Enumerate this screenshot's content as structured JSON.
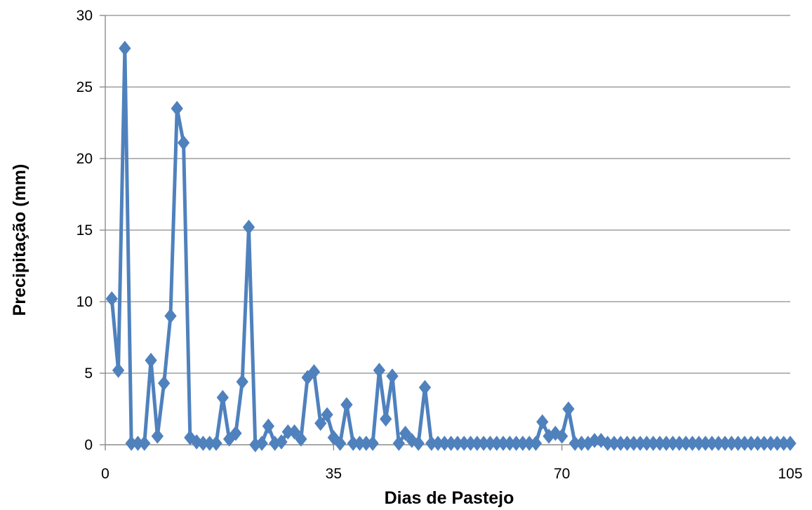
{
  "chart_data": {
    "type": "line",
    "xlabel": "Dias de Pastejo",
    "ylabel": "Precipitação (mm)",
    "xlim": [
      0,
      105
    ],
    "ylim": [
      0,
      30
    ],
    "x_ticks": [
      0,
      35,
      70,
      105
    ],
    "y_ticks": [
      0,
      5,
      10,
      15,
      20,
      25,
      30
    ],
    "grid": "horizontal",
    "legend": "none",
    "series": [
      {
        "color": "#4f81bd",
        "marker": "diamond",
        "points": [
          [
            1,
            10.2
          ],
          [
            2,
            5.2
          ],
          [
            3,
            27.7
          ],
          [
            4,
            0.1
          ],
          [
            5,
            0.1
          ],
          [
            6,
            0.1
          ],
          [
            7,
            5.9
          ],
          [
            8,
            0.6
          ],
          [
            9,
            4.3
          ],
          [
            10,
            9.0
          ],
          [
            11,
            23.5
          ],
          [
            12,
            21.1
          ],
          [
            13,
            0.5
          ],
          [
            14,
            0.2
          ],
          [
            15,
            0.1
          ],
          [
            16,
            0.1
          ],
          [
            17,
            0.1
          ],
          [
            18,
            3.3
          ],
          [
            19,
            0.4
          ],
          [
            20,
            0.8
          ],
          [
            21,
            4.4
          ],
          [
            22,
            15.2
          ],
          [
            23,
            0.0
          ],
          [
            24,
            0.1
          ],
          [
            25,
            1.3
          ],
          [
            26,
            0.1
          ],
          [
            27,
            0.2
          ],
          [
            28,
            0.9
          ],
          [
            29,
            0.9
          ],
          [
            30,
            0.4
          ],
          [
            31,
            4.7
          ],
          [
            32,
            5.1
          ],
          [
            33,
            1.5
          ],
          [
            34,
            2.1
          ],
          [
            35,
            0.5
          ],
          [
            36,
            0.1
          ],
          [
            37,
            2.8
          ],
          [
            38,
            0.1
          ],
          [
            39,
            0.1
          ],
          [
            40,
            0.1
          ],
          [
            41,
            0.1
          ],
          [
            42,
            5.2
          ],
          [
            43,
            1.8
          ],
          [
            44,
            4.8
          ],
          [
            45,
            0.1
          ],
          [
            46,
            0.8
          ],
          [
            47,
            0.3
          ],
          [
            48,
            0.1
          ],
          [
            49,
            4.0
          ],
          [
            50,
            0.1
          ],
          [
            51,
            0.1
          ],
          [
            52,
            0.1
          ],
          [
            53,
            0.1
          ],
          [
            54,
            0.1
          ],
          [
            55,
            0.1
          ],
          [
            56,
            0.1
          ],
          [
            57,
            0.1
          ],
          [
            58,
            0.1
          ],
          [
            59,
            0.1
          ],
          [
            60,
            0.1
          ],
          [
            61,
            0.1
          ],
          [
            62,
            0.1
          ],
          [
            63,
            0.1
          ],
          [
            64,
            0.1
          ],
          [
            65,
            0.1
          ],
          [
            66,
            0.1
          ],
          [
            67,
            1.6
          ],
          [
            68,
            0.6
          ],
          [
            69,
            0.8
          ],
          [
            70,
            0.6
          ],
          [
            71,
            2.5
          ],
          [
            72,
            0.1
          ],
          [
            73,
            0.1
          ],
          [
            74,
            0.1
          ],
          [
            75,
            0.3
          ],
          [
            76,
            0.3
          ],
          [
            77,
            0.1
          ],
          [
            78,
            0.1
          ],
          [
            79,
            0.1
          ],
          [
            80,
            0.1
          ],
          [
            81,
            0.1
          ],
          [
            82,
            0.1
          ],
          [
            83,
            0.1
          ],
          [
            84,
            0.1
          ],
          [
            85,
            0.1
          ],
          [
            86,
            0.1
          ],
          [
            87,
            0.1
          ],
          [
            88,
            0.1
          ],
          [
            89,
            0.1
          ],
          [
            90,
            0.1
          ],
          [
            91,
            0.1
          ],
          [
            92,
            0.1
          ],
          [
            93,
            0.1
          ],
          [
            94,
            0.1
          ],
          [
            95,
            0.1
          ],
          [
            96,
            0.1
          ],
          [
            97,
            0.1
          ],
          [
            98,
            0.1
          ],
          [
            99,
            0.1
          ],
          [
            100,
            0.1
          ],
          [
            101,
            0.1
          ],
          [
            102,
            0.1
          ],
          [
            103,
            0.1
          ],
          [
            104,
            0.1
          ],
          [
            105,
            0.1
          ]
        ]
      }
    ]
  }
}
